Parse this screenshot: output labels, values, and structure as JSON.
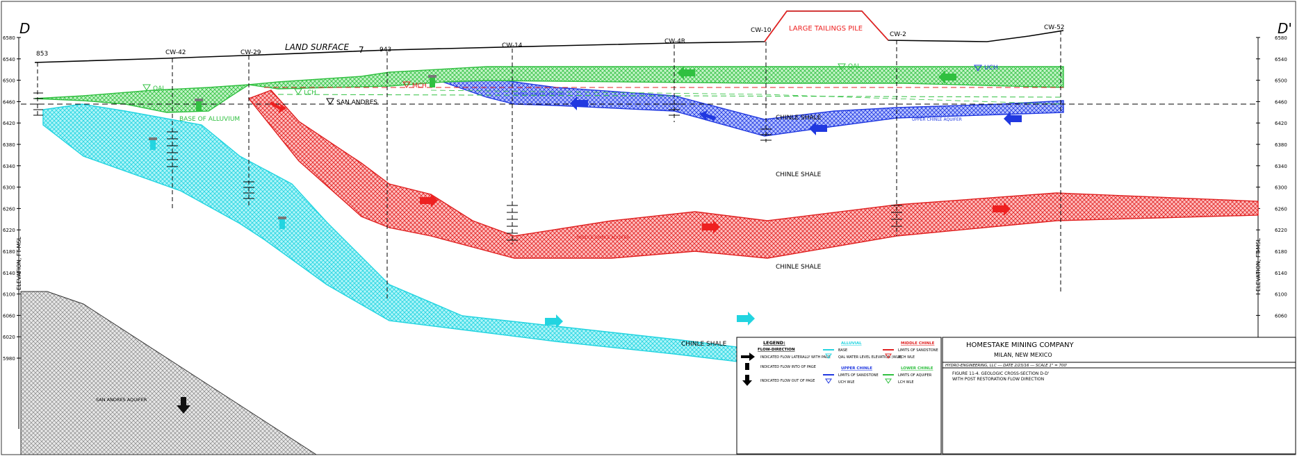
{
  "section": {
    "label_left": "D",
    "label_right": "D'",
    "y_axis_title": "ELEVATION, FT-MSL",
    "elevation_ticks": [
      "6580",
      "6540",
      "6500",
      "6460",
      "6420",
      "6380",
      "6340",
      "6300",
      "6260",
      "6220",
      "6180",
      "6140",
      "6100",
      "6060",
      "6020",
      "5980"
    ],
    "elevation_ticks_right": [
      "6580",
      "6540",
      "6500",
      "6460",
      "6420",
      "6380",
      "6340",
      "6300",
      "6260",
      "6220",
      "6180",
      "6140",
      "6100",
      "6060"
    ]
  },
  "wells": [
    {
      "id": "853",
      "label": "853"
    },
    {
      "id": "cw42",
      "label": "CW-42"
    },
    {
      "id": "cw29",
      "label": "CW-29"
    },
    {
      "id": "943",
      "label": "943"
    },
    {
      "id": "cw14",
      "label": "CW-14"
    },
    {
      "id": "cw4r",
      "label": "CW-4R"
    },
    {
      "id": "cw10",
      "label": "CW-10"
    },
    {
      "id": "cw2",
      "label": "CW-2"
    },
    {
      "id": "cw52",
      "label": "CW-52"
    }
  ],
  "annotations": {
    "land_surface": "LAND SURFACE",
    "land_surface_mark": "7",
    "tailings": "LARGE TAILINGS PILE",
    "base_alluvium": "BASE OF ALLUVIUM",
    "san_andres_level": "SAN ANDRES",
    "chinle_shale_1": "CHINLE SHALE",
    "chinle_shale_2": "CHINLE SHALE",
    "chinle_shale_3": "CHINLE SHALE",
    "chinle_shale_4": "CHINLE SHALE",
    "lch": "LCH",
    "mch": "MCH",
    "qal_1": "QAL",
    "qal_2": "QAL",
    "uch": "UCH",
    "upper_chinle_1": "UPPER CHINLE AQUIFER",
    "upper_chinle_2": "UPPER CHINLE AQUIFER",
    "middle_chinle": "MIDDLE CHINLE AQUIFER",
    "san_andres_aquifer": "SAN ANDRES AQUIFER"
  },
  "legend": {
    "title": "LEGEND:",
    "flow_heading": "FLOW-DIRECTION",
    "flow_items": [
      "INDICATED FLOW LATERALLY WITH PAGE",
      "INDICATED FLOW INTO OF PAGE",
      "INDICATED FLOW OUT OF PAGE"
    ],
    "alluvial_heading": "ALLUVIAL",
    "alluvial_items": [
      "BASE",
      "QAL WATER LEVEL ELEVATION (WLE)"
    ],
    "upper_heading": "UPPER CHINLE",
    "upper_items": [
      "LIMITS OF SANDSTONE",
      "UCH WLE"
    ],
    "middle_heading": "MIDDLE CHINLE",
    "middle_items": [
      "LIMITS OF SANDSTONE",
      "MCH WLE"
    ],
    "lower_heading": "LOWER CHINLE",
    "lower_items": [
      "LIMITS OF AQUIFER",
      "LCH WLE"
    ]
  },
  "title_block": {
    "company": "HOMESTAKE MINING COMPANY",
    "location": "MILAN, NEW MEXICO",
    "preparer_line": "HYDRO-ENGINEERING, LLC --- DATE 2/23/16 --- SCALE 1\" = 700'",
    "figure_line1": "FIGURE 11-4. GEOLOGIC CROSS-SECTION D-D'",
    "figure_line2": "WITH POST RESTORATION FLOW DIRECTION"
  },
  "colors": {
    "lower_chinle": "#38e0e8",
    "middle_chinle": "#ee2020",
    "upper_chinle": "#2040e0",
    "alluvium": "#30d040",
    "san_andres": "#9a9a9a"
  }
}
